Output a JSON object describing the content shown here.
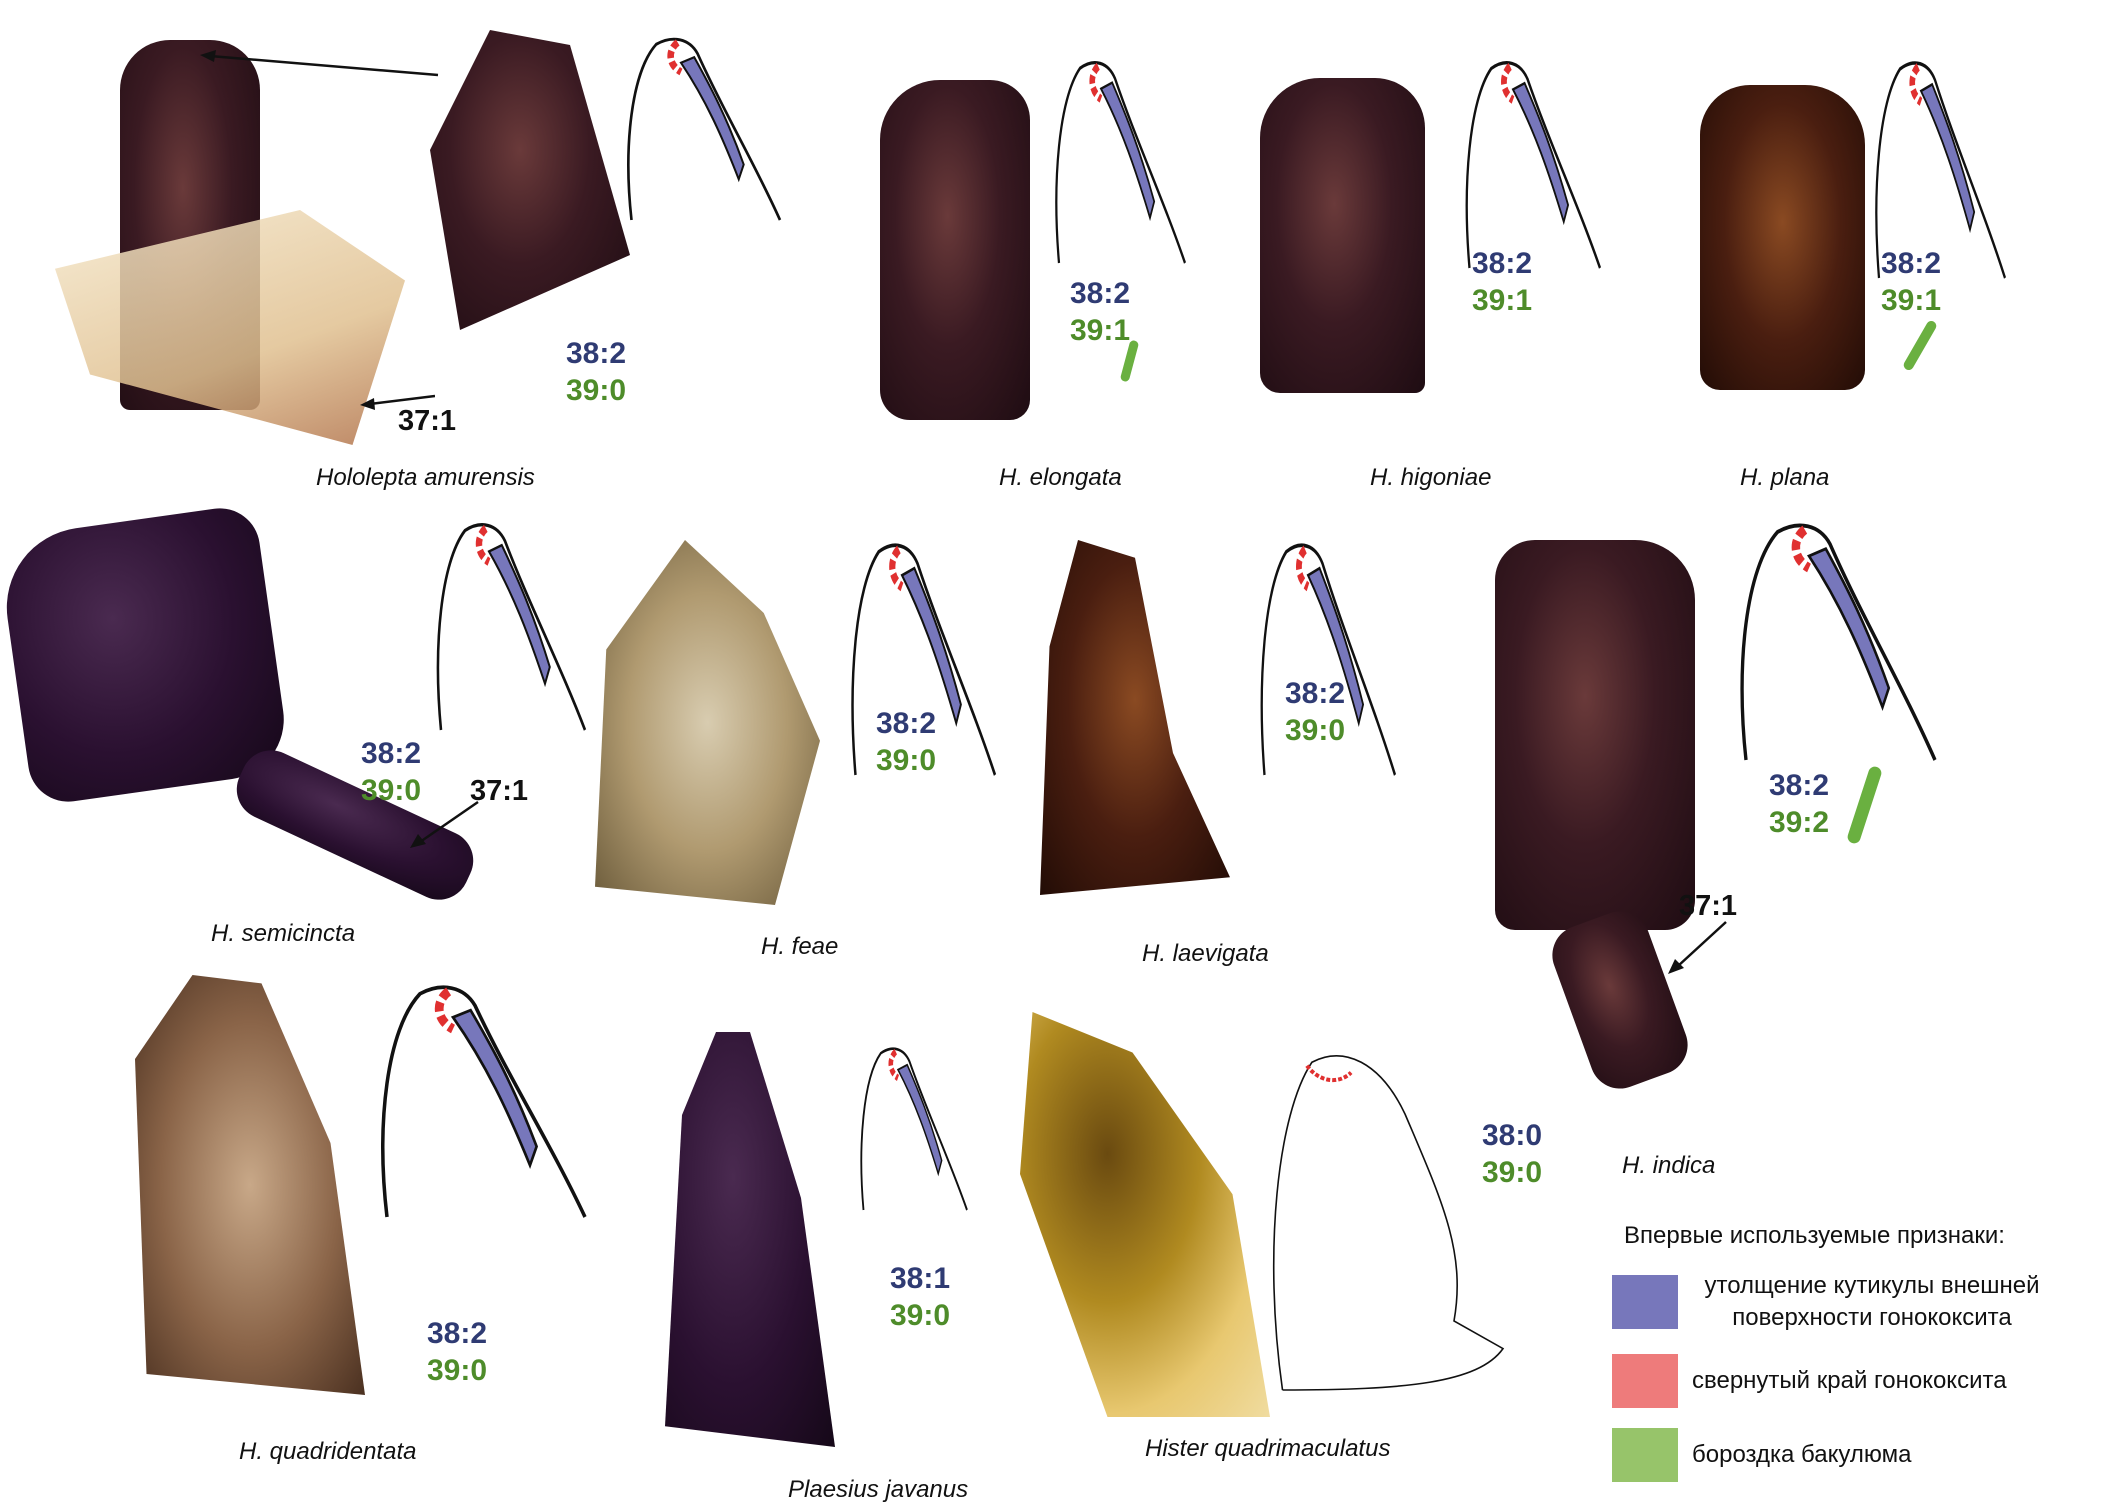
{
  "colors": {
    "thickening": "#7777bb",
    "rolled_edge": "#ee7b7b",
    "groove": "#97c46a",
    "code38": "#2f3b73",
    "code39": "#4e8c2a"
  },
  "panels": [
    {
      "species": "Hololepta amurensis",
      "c38": "38:2",
      "c39": "39:0",
      "c37": "37:1"
    },
    {
      "species": "H. elongata",
      "c38": "38:2",
      "c39": "39:1"
    },
    {
      "species": "H. higoniae",
      "c38": "38:2",
      "c39": "39:1"
    },
    {
      "species": "H. plana",
      "c38": "38:2",
      "c39": "39:1"
    },
    {
      "species": "H. semicincta",
      "c38": "38:2",
      "c39": "39:0",
      "c37": "37:1"
    },
    {
      "species": "H. feae",
      "c38": "38:2",
      "c39": "39:0"
    },
    {
      "species": "H. laevigata",
      "c38": "38:2",
      "c39": "39:0"
    },
    {
      "species": "H. indica",
      "c38": "38:2",
      "c39": "39:2",
      "c37": "37:1"
    },
    {
      "species": "H. quadridentata",
      "c38": "38:2",
      "c39": "39:0"
    },
    {
      "species": "Plaesius javanus",
      "c38": "38:1",
      "c39": "39:0"
    },
    {
      "species": "Hister quadrimaculatus",
      "c38": "38:0",
      "c39": "39:0"
    }
  ],
  "legend": {
    "title": "Впервые используемые признаки:",
    "items": [
      {
        "label": "утолщение кутикулы внешней поверхности гонококсита"
      },
      {
        "label": "свернутый край гонококсита"
      },
      {
        "label": "бороздка бакулюма"
      }
    ]
  }
}
